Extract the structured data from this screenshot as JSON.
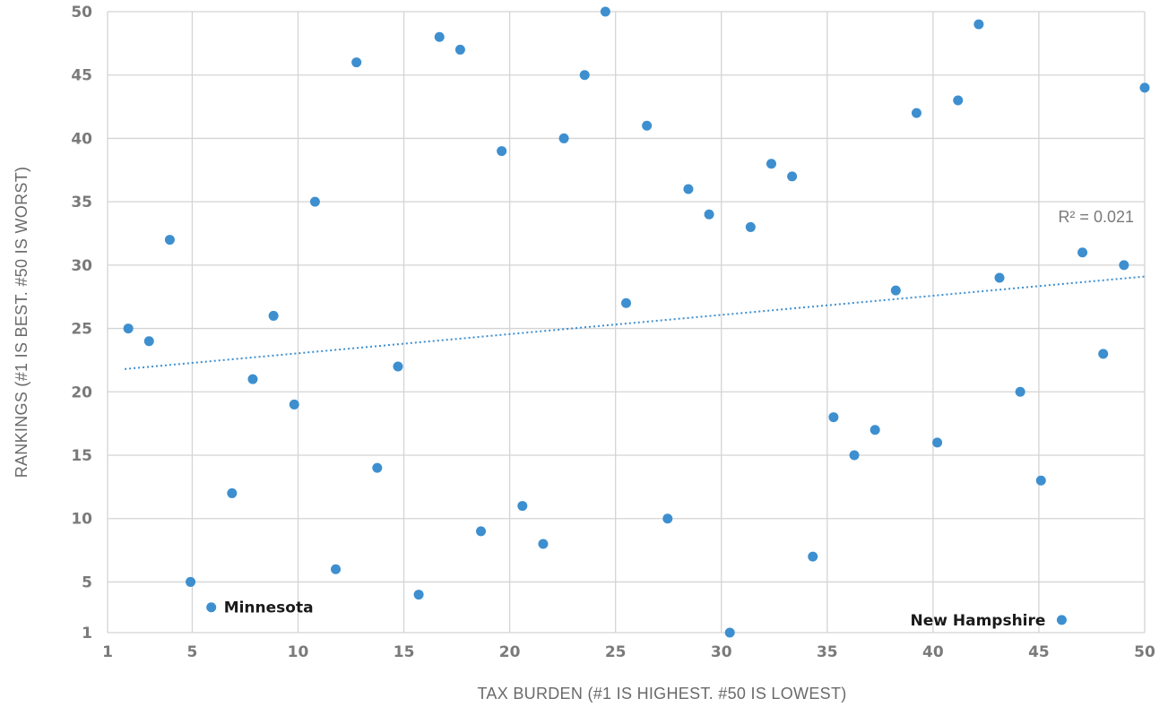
{
  "chart_data": {
    "type": "scatter",
    "xlabel": "TAX BURDEN (#1 IS HIGHEST. #50 IS LOWEST)",
    "ylabel": "RANKINGS (#1 IS BEST. #50 IS WORST)",
    "xlim": [
      1,
      50
    ],
    "ylim": [
      1,
      50
    ],
    "xticks": [
      1,
      5,
      10,
      15,
      20,
      25,
      30,
      35,
      40,
      45,
      50
    ],
    "yticks": [
      1,
      5,
      10,
      15,
      20,
      25,
      30,
      35,
      40,
      45,
      50
    ],
    "grid": true,
    "point_color": "#3d8fcf",
    "points": [
      {
        "x": 2,
        "y": 25
      },
      {
        "x": 3,
        "y": 24
      },
      {
        "x": 4,
        "y": 32
      },
      {
        "x": 5,
        "y": 5
      },
      {
        "x": 6,
        "y": 3
      },
      {
        "x": 7,
        "y": 12
      },
      {
        "x": 8,
        "y": 21
      },
      {
        "x": 9,
        "y": 26
      },
      {
        "x": 10,
        "y": 19
      },
      {
        "x": 11,
        "y": 35
      },
      {
        "x": 12,
        "y": 6
      },
      {
        "x": 13,
        "y": 46
      },
      {
        "x": 14,
        "y": 14
      },
      {
        "x": 15,
        "y": 22
      },
      {
        "x": 16,
        "y": 4
      },
      {
        "x": 17,
        "y": 48
      },
      {
        "x": 18,
        "y": 47
      },
      {
        "x": 19,
        "y": 9
      },
      {
        "x": 20,
        "y": 39
      },
      {
        "x": 21,
        "y": 11
      },
      {
        "x": 22,
        "y": 8
      },
      {
        "x": 23,
        "y": 40
      },
      {
        "x": 24,
        "y": 45
      },
      {
        "x": 25,
        "y": 50
      },
      {
        "x": 26,
        "y": 27
      },
      {
        "x": 27,
        "y": 41
      },
      {
        "x": 28,
        "y": 10
      },
      {
        "x": 29,
        "y": 36
      },
      {
        "x": 30,
        "y": 34
      },
      {
        "x": 31,
        "y": 1
      },
      {
        "x": 32,
        "y": 33
      },
      {
        "x": 33,
        "y": 38
      },
      {
        "x": 34,
        "y": 37
      },
      {
        "x": 35,
        "y": 7
      },
      {
        "x": 36,
        "y": 18
      },
      {
        "x": 37,
        "y": 15
      },
      {
        "x": 38,
        "y": 17
      },
      {
        "x": 39,
        "y": 28
      },
      {
        "x": 40,
        "y": 42
      },
      {
        "x": 41,
        "y": 16
      },
      {
        "x": 42,
        "y": 43
      },
      {
        "x": 43,
        "y": 49
      },
      {
        "x": 44,
        "y": 29
      },
      {
        "x": 45,
        "y": 20
      },
      {
        "x": 46,
        "y": 13
      },
      {
        "x": 47,
        "y": 2
      },
      {
        "x": 48,
        "y": 31
      },
      {
        "x": 49,
        "y": 23
      },
      {
        "x": 50,
        "y": 30
      },
      {
        "x": 51,
        "y": 44
      }
    ],
    "trendline": {
      "x_start": 2,
      "y_start": 21.8,
      "x_end": 51,
      "y_end": 29.1,
      "label": "R² = 0.021"
    },
    "annotations": [
      {
        "text": "Minnesota",
        "x": 6,
        "y": 3
      },
      {
        "text": "New Hampshire",
        "x": 47,
        "y": 2
      }
    ]
  }
}
